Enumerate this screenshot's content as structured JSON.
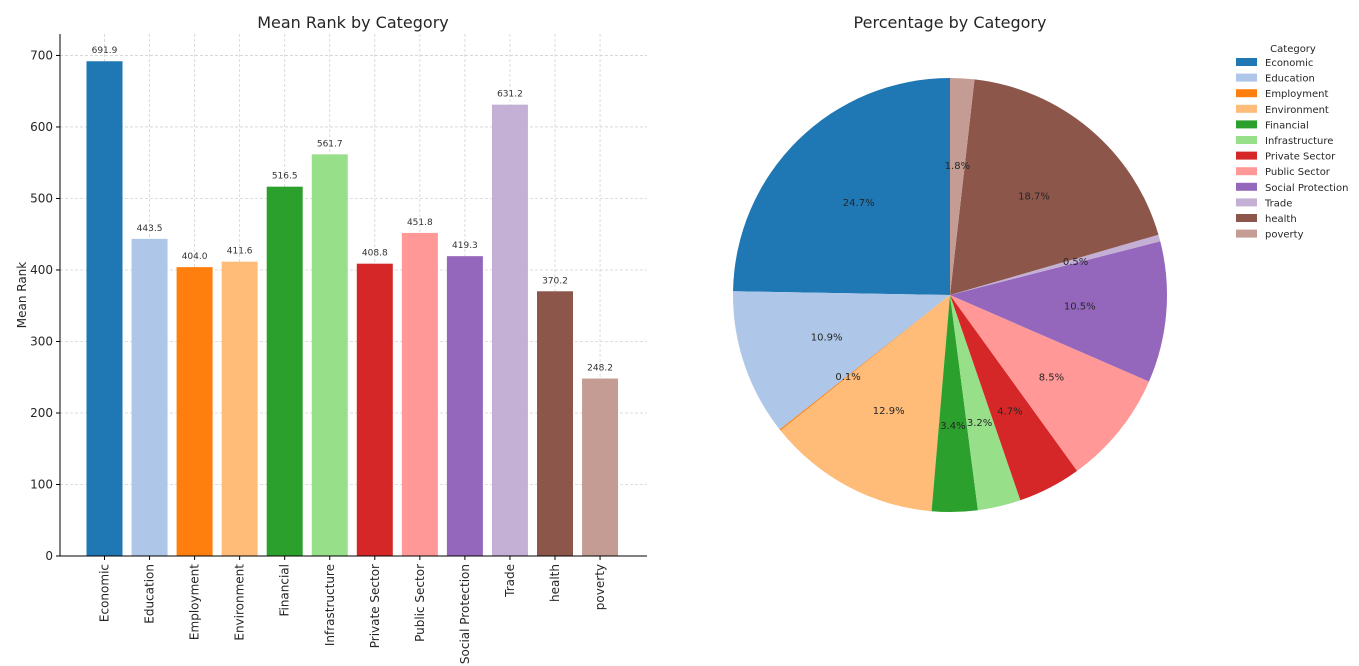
{
  "chart_data": [
    {
      "type": "bar",
      "title": "Mean Rank by Category",
      "xlabel": "",
      "ylabel": "Mean Rank",
      "ylim": [
        0,
        730
      ],
      "yticks": [
        0,
        100,
        200,
        300,
        400,
        500,
        600,
        700
      ],
      "grid": true,
      "categories": [
        "Economic",
        "Education",
        "Employment",
        "Environment",
        "Financial",
        "Infrastructure",
        "Private Sector",
        "Public Sector",
        "Social Protection",
        "Trade",
        "health",
        "poverty"
      ],
      "values": [
        691.9,
        443.5,
        404.0,
        411.6,
        516.5,
        561.7,
        408.8,
        451.8,
        419.3,
        631.2,
        370.2,
        248.2
      ],
      "value_labels": [
        "691.9",
        "443.5",
        "404.0",
        "411.6",
        "516.5",
        "561.7",
        "408.8",
        "451.8",
        "419.3",
        "631.2",
        "370.2",
        "248.2"
      ],
      "colors": [
        "#1f77b4",
        "#aec7e8",
        "#ff7f0e",
        "#ffbb78",
        "#2ca02c",
        "#98df8a",
        "#d62728",
        "#ff9896",
        "#9467bd",
        "#c5b0d5",
        "#8c564b",
        "#c49c94"
      ]
    },
    {
      "type": "pie",
      "title": "Percentage by Category",
      "legend_title": "Category",
      "legend_position": "top-right",
      "start_angle_deg": 90,
      "direction": "counterclockwise",
      "categories": [
        "Economic",
        "Education",
        "Employment",
        "Environment",
        "Financial",
        "Infrastructure",
        "Private Sector",
        "Public Sector",
        "Social Protection",
        "Trade",
        "health",
        "poverty"
      ],
      "values": [
        24.7,
        10.9,
        0.1,
        12.9,
        3.4,
        3.2,
        4.7,
        8.5,
        10.5,
        0.5,
        18.7,
        1.8
      ],
      "value_labels": [
        "24.7%",
        "10.9%",
        "0.1%",
        "12.9%",
        "3.4%",
        "3.2%",
        "4.7%",
        "8.5%",
        "10.5%",
        "0.5%",
        "18.7%",
        "1.8%"
      ],
      "colors": [
        "#1f77b4",
        "#aec7e8",
        "#ff7f0e",
        "#ffbb78",
        "#2ca02c",
        "#98df8a",
        "#d62728",
        "#ff9896",
        "#9467bd",
        "#c5b0d5",
        "#8c564b",
        "#c49c94"
      ]
    }
  ]
}
